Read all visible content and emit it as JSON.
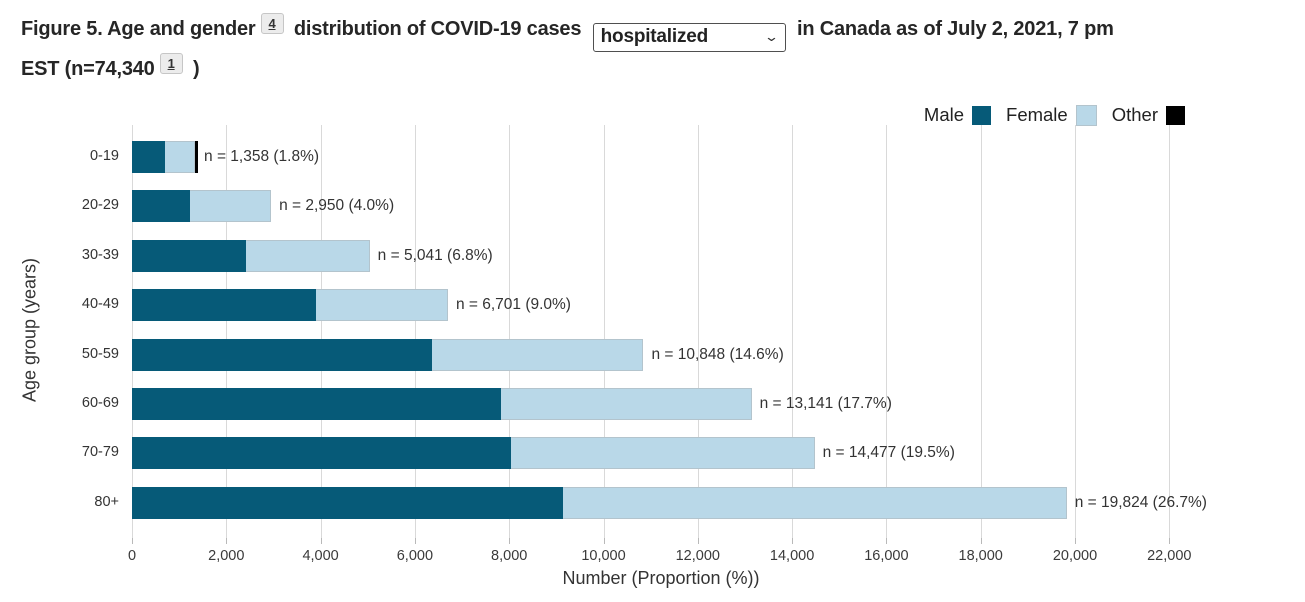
{
  "figure_title": {
    "prefix": "Figure 5. Age and gender",
    "footnote_top": "4",
    "middle": "distribution of COVID-19 cases",
    "suffix_line1": "in Canada as of July 2, 2021, 7 pm",
    "suffix_line2": "EST (n=74,340",
    "footnote_bottom": "1",
    "closing_paren": ")"
  },
  "dropdown": {
    "value": "hospitalized",
    "chevron": "⌄"
  },
  "chart_data": {
    "type": "bar",
    "orientation": "horizontal",
    "stacked": true,
    "categories": [
      "0-19",
      "20-29",
      "30-39",
      "40-49",
      "50-59",
      "60-69",
      "70-79",
      "80+"
    ],
    "series": [
      {
        "name": "Male",
        "color": "#065A78",
        "values": [
          700,
          1230,
          2421,
          3893,
          6357,
          7827,
          8032,
          9135
        ]
      },
      {
        "name": "Female",
        "color": "#B9D8E8",
        "values": [
          645,
          1720,
          2620,
          2808,
          4491,
          5314,
          6445,
          10689
        ]
      },
      {
        "name": "Other",
        "color": "#000000",
        "values": [
          13,
          0,
          0,
          0,
          0,
          0,
          0,
          0
        ]
      }
    ],
    "totals": [
      1358,
      2950,
      5041,
      6701,
      10848,
      13141,
      14477,
      19824
    ],
    "bar_labels": [
      "n = 1,358 (1.8%)",
      "n = 2,950 (4.0%)",
      "n = 5,041 (6.8%)",
      "n = 6,701 (9.0%)",
      "n = 10,848 (14.6%)",
      "n = 13,141 (17.7%)",
      "n = 14,477 (19.5%)",
      "n = 19,824 (26.7%)"
    ],
    "xlabel": "Number (Proportion (%))",
    "ylabel": "Age group (years)",
    "xlim": [
      0,
      22000
    ],
    "xticks": [
      0,
      2000,
      4000,
      6000,
      8000,
      10000,
      12000,
      14000,
      16000,
      18000,
      20000,
      22000
    ],
    "xtick_labels": [
      "0",
      "2,000",
      "4,000",
      "6,000",
      "8,000",
      "10,000",
      "12,000",
      "14,000",
      "16,000",
      "18,000",
      "20,000",
      "22,000"
    ],
    "legend_position": "top-right",
    "grid": "vertical",
    "gridline_color": "#d9d9d9"
  }
}
